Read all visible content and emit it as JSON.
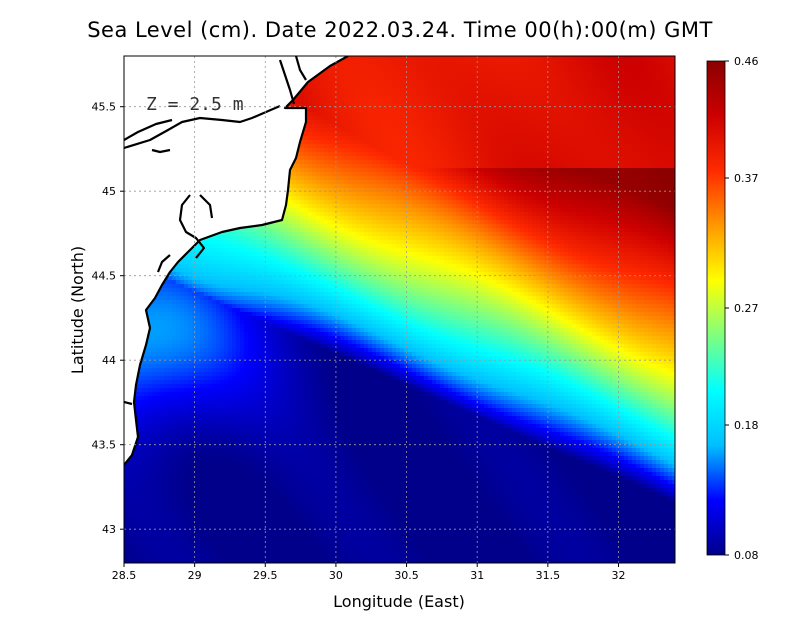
{
  "title": "Sea Level (cm). Date 2022.03.24. Time 00(h):00(m) GMT",
  "depth_label": "Z = 2.5 m",
  "chart_data": {
    "type": "heatmap",
    "variable": "Sea Level",
    "units": "cm",
    "date": "2022.03.24",
    "time": "00(h):00(m) GMT",
    "depth": "2.5 m",
    "xlabel": "Longitude (East)",
    "ylabel": "Latitude (North)",
    "xlim": [
      28.5,
      32.4
    ],
    "ylim": [
      42.8,
      45.8
    ],
    "x_ticks": [
      "28.5",
      "29",
      "29.5",
      "30",
      "30.5",
      "31",
      "31.5",
      "32"
    ],
    "y_ticks": [
      "43",
      "43.5",
      "44",
      "44.5",
      "45",
      "45.5"
    ],
    "grid": true,
    "colorbar": {
      "min": 0.08,
      "max": 0.46,
      "ticks": [
        "0.08",
        "0.18",
        "0.27",
        "0.37",
        "0.46"
      ],
      "colormap": [
        "#00008b",
        "#0000ff",
        "#00bfff",
        "#00ffff",
        "#7fff7f",
        "#ffff00",
        "#ff9900",
        "#ff2a00",
        "#cc0000",
        "#8b0000"
      ]
    }
  },
  "colors": {
    "land": "#ffffff",
    "coastline": "#000000",
    "grid": "#9a9a9a"
  }
}
